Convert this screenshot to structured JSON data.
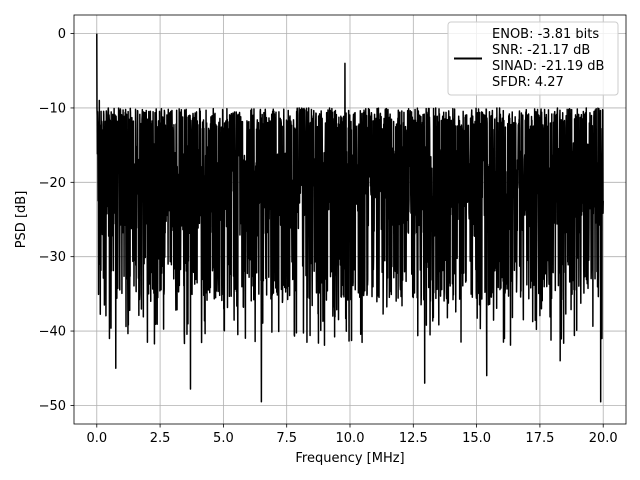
{
  "chart_data": {
    "type": "line",
    "title": "",
    "xlabel": "Frequency [MHz]",
    "ylabel": "PSD [dB]",
    "xlim": [
      -0.9,
      20.9
    ],
    "ylim": [
      -52.5,
      2.5
    ],
    "x_ticks": [
      0.0,
      2.5,
      5.0,
      7.5,
      10.0,
      12.5,
      15.0,
      17.5,
      20.0
    ],
    "x_tick_labels": [
      "0.0",
      "2.5",
      "5.0",
      "7.5",
      "10.0",
      "12.5",
      "15.0",
      "17.5",
      "20.0"
    ],
    "y_ticks": [
      0,
      -10,
      -20,
      -30,
      -40,
      -50
    ],
    "y_tick_labels": [
      "0",
      "−10",
      "−20",
      "−30",
      "−40",
      "−50"
    ],
    "grid": true,
    "legend_position": "top-right",
    "legend_entries": [
      "ENOB: -3.81 bits",
      "SNR: -21.17 dB",
      "SINAD: -21.19 dB",
      "SFDR: 4.27"
    ],
    "series": [
      {
        "color": "#000000",
        "x_range": [
          0,
          20
        ],
        "envelope_min": -50,
        "envelope_max": 0,
        "typical_range": [
          -30,
          -12
        ],
        "notable_points": [
          {
            "x": 0.0,
            "y": 0.0
          },
          {
            "x": 0.05,
            "y": -22.5
          },
          {
            "x": 0.1,
            "y": -9.0
          },
          {
            "x": 0.3,
            "y": -36.5
          },
          {
            "x": 0.5,
            "y": -41.0
          },
          {
            "x": 0.75,
            "y": -45.0
          },
          {
            "x": 2.0,
            "y": -41.5
          },
          {
            "x": 3.7,
            "y": -47.8
          },
          {
            "x": 6.5,
            "y": -49.5
          },
          {
            "x": 7.8,
            "y": -40.5
          },
          {
            "x": 8.3,
            "y": -41.5
          },
          {
            "x": 9.8,
            "y": -4.0
          },
          {
            "x": 12.95,
            "y": -47.0
          },
          {
            "x": 15.4,
            "y": -46.0
          },
          {
            "x": 16.1,
            "y": -41.0
          },
          {
            "x": 18.3,
            "y": -44.0
          },
          {
            "x": 19.9,
            "y": -49.5
          },
          {
            "x": 19.95,
            "y": -41.0
          },
          {
            "x": 20.0,
            "y": -22.5
          }
        ]
      }
    ]
  }
}
